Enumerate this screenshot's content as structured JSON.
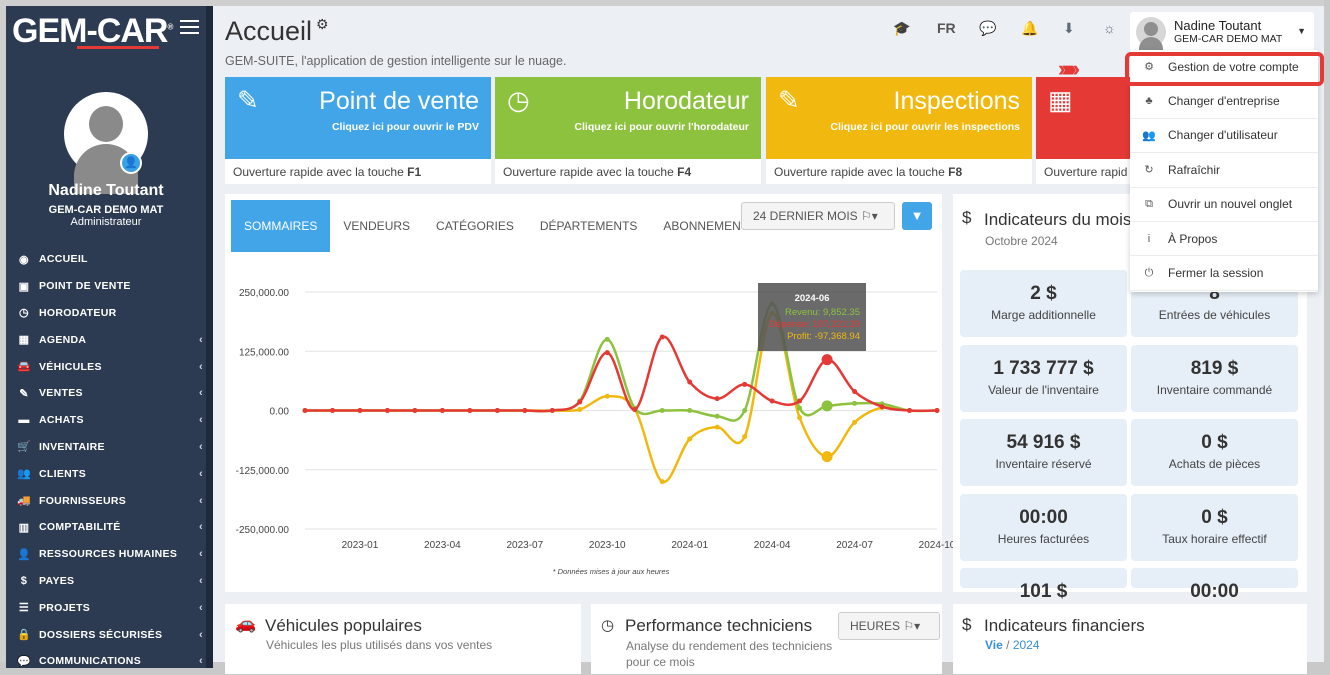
{
  "app": {
    "logo": "GEM-CAR",
    "logo_mark": "®"
  },
  "user": {
    "name": "Nadine Toutant",
    "company": "GEM-CAR DEMO MAT",
    "role": "Administrateur"
  },
  "sidebar": {
    "items": [
      {
        "label": "ACCUEIL",
        "icon": "dashboard-icon",
        "chev": ""
      },
      {
        "label": "POINT DE VENTE",
        "icon": "money-icon",
        "chev": ""
      },
      {
        "label": "HORODATEUR",
        "icon": "clock-icon",
        "chev": ""
      },
      {
        "label": "AGENDA",
        "icon": "calendar-icon",
        "chev": "‹"
      },
      {
        "label": "VÉHICULES",
        "icon": "car-icon",
        "chev": "‹"
      },
      {
        "label": "VENTES",
        "icon": "edit-icon",
        "chev": "‹"
      },
      {
        "label": "ACHATS",
        "icon": "credit-card-icon",
        "chev": "‹"
      },
      {
        "label": "INVENTAIRE",
        "icon": "cart-icon",
        "chev": "‹"
      },
      {
        "label": "CLIENTS",
        "icon": "users-icon",
        "chev": "‹"
      },
      {
        "label": "FOURNISSEURS",
        "icon": "truck-icon",
        "chev": "‹"
      },
      {
        "label": "COMPTABILITÉ",
        "icon": "bar-chart-icon",
        "chev": "‹"
      },
      {
        "label": "RESSOURCES HUMAINES",
        "icon": "user-icon",
        "chev": "‹"
      },
      {
        "label": "PAYES",
        "icon": "dollar-icon",
        "chev": "‹"
      },
      {
        "label": "PROJETS",
        "icon": "list-icon",
        "chev": "‹"
      },
      {
        "label": "DOSSIERS SÉCURISÉS",
        "icon": "lock-icon",
        "chev": "‹"
      },
      {
        "label": "COMMUNICATIONS",
        "icon": "comments-icon",
        "chev": "‹"
      }
    ]
  },
  "header": {
    "title": "Accueil",
    "subtitle": "GEM-SUITE, l'application de gestion intelligente sur le nuage.",
    "lang": "FR"
  },
  "tiles": [
    {
      "title": "Point de vente",
      "sub": "Cliquez ici pour ouvrir le PDV",
      "foot": "Ouverture rapide avec la touche ",
      "key": "F1",
      "color": "#42a5e8",
      "icon": "✎"
    },
    {
      "title": "Horodateur",
      "sub": "Cliquez ici pour ouvrir l'horodateur",
      "foot": "Ouverture rapide avec la touche ",
      "key": "F4",
      "color": "#8dc23f",
      "icon": "◷"
    },
    {
      "title": "Inspections",
      "sub": "Cliquez ici pour ouvrir les inspections",
      "foot": "Ouverture rapide avec la touche ",
      "key": "F8",
      "color": "#f1b80f",
      "icon": "✎"
    },
    {
      "title": "",
      "sub": "",
      "foot": "Ouverture rapid",
      "key": "",
      "color": "#e53935",
      "icon": "▦"
    }
  ],
  "chart_panel": {
    "tabs": [
      "SOMMAIRES",
      "VENDEURS",
      "CATÉGORIES",
      "DÉPARTEMENTS",
      "ABONNEMENTS"
    ],
    "period": "24 DERNIER MOIS",
    "note": "* Données mises à jour aux heures",
    "tooltip": {
      "title": "2024-06",
      "lines": [
        "Revenu: 9,852.35",
        "Dépense: 107,221.29",
        "Profit: -97,368.94"
      ]
    }
  },
  "chart_data": {
    "type": "line",
    "x_ticks": [
      "2023-01",
      "2023-04",
      "2023-07",
      "2023-10",
      "2024-01",
      "2024-04",
      "2024-07",
      "2024-10"
    ],
    "y_ticks": [
      "250,000.00",
      "125,000.00",
      "0.00",
      "-125,000.00",
      "-250,000.00"
    ],
    "ylim": [
      -250000,
      250000
    ],
    "x": [
      "2022-11",
      "2022-12",
      "2023-01",
      "2023-02",
      "2023-03",
      "2023-04",
      "2023-05",
      "2023-06",
      "2023-07",
      "2023-08",
      "2023-09",
      "2023-10",
      "2023-11",
      "2023-12",
      "2024-01",
      "2024-02",
      "2024-03",
      "2024-04",
      "2024-05",
      "2024-06",
      "2024-07",
      "2024-08",
      "2024-09",
      "2024-10"
    ],
    "series": [
      {
        "name": "Revenu",
        "color": "#8dc23f",
        "values": [
          0,
          0,
          0,
          0,
          0,
          0,
          0,
          0,
          0,
          0,
          20000,
          150000,
          5000,
          0,
          0,
          -12000,
          0,
          225000,
          5000,
          9852,
          15000,
          14000,
          0,
          0
        ]
      },
      {
        "name": "Dépense",
        "color": "#e53935",
        "values": [
          0,
          0,
          0,
          0,
          0,
          0,
          0,
          0,
          0,
          0,
          18000,
          122000,
          2000,
          155000,
          60000,
          25000,
          55000,
          20000,
          20000,
          107221,
          40000,
          8000,
          0,
          0
        ]
      },
      {
        "name": "Profit",
        "color": "#f1b80f",
        "values": [
          0,
          0,
          0,
          0,
          0,
          0,
          0,
          0,
          0,
          0,
          2000,
          30000,
          3000,
          -150000,
          -60000,
          -35000,
          -55000,
          205000,
          -15000,
          -97369,
          -25000,
          6000,
          0,
          0
        ]
      }
    ]
  },
  "indicators": {
    "title": "Indicateurs du mois",
    "sub": "Octobre 2024",
    "items": [
      {
        "v": "2 $",
        "l": "Marge additionnelle"
      },
      {
        "v": "8",
        "l": "Entrées de véhicules"
      },
      {
        "v": "1 733 777 $",
        "l": "Valeur de l'inventaire"
      },
      {
        "v": "819 $",
        "l": "Inventaire commandé"
      },
      {
        "v": "54 916 $",
        "l": "Inventaire réservé"
      },
      {
        "v": "0 $",
        "l": "Achats de pièces"
      },
      {
        "v": "00:00",
        "l": "Heures facturées"
      },
      {
        "v": "0 $",
        "l": "Taux horaire effectif"
      },
      {
        "v": "101 $",
        "l": ""
      },
      {
        "v": "00:00",
        "l": ""
      }
    ]
  },
  "bottom": {
    "vehicles": {
      "title": "Véhicules populaires",
      "sub": "Véhicules les plus utilisés dans vos ventes"
    },
    "tech": {
      "title": "Performance techniciens",
      "sub": "Analyse du rendement des techniciens pour ce mois",
      "btn": "HEURES"
    },
    "fin": {
      "title": "Indicateurs financiers",
      "link": "Vie",
      "sep": " / ",
      "year": "2024"
    }
  },
  "dropdown": [
    {
      "label": "Gestion de votre compte",
      "icon": "⚙"
    },
    {
      "label": "Changer d'entreprise",
      "icon": "♣"
    },
    {
      "label": "Changer d'utilisateur",
      "icon": "👥"
    },
    {
      "label": "Rafraîchir",
      "icon": "↻"
    },
    {
      "label": "Ouvrir un nouvel onglet",
      "icon": "⧉"
    },
    {
      "label": "À Propos",
      "icon": "i"
    },
    {
      "label": "Fermer la session",
      "icon": "⏻"
    }
  ]
}
